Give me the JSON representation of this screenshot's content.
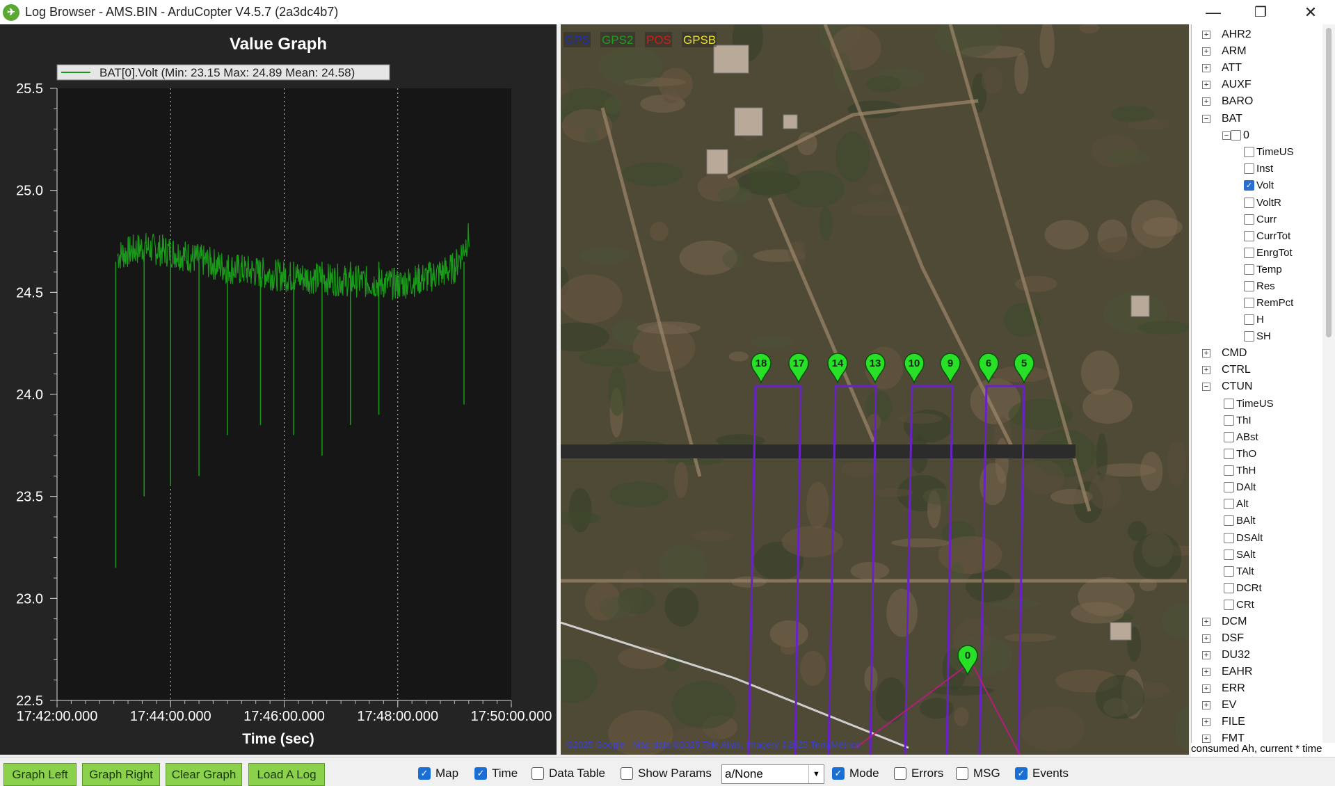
{
  "window": {
    "title": "Log Browser - AMS.BIN - ArduCopter V4.5.7 (2a3dc4b7)",
    "minimize_glyph": "—",
    "maximize_glyph": "❐",
    "close_glyph": "✕"
  },
  "graph": {
    "title": "Value Graph",
    "legend_label": "BAT[0].Volt  (Min: 23.15 Max: 24.89 Mean: 24.58)",
    "xlabel": "Time (sec)"
  },
  "chart_data": {
    "type": "line",
    "title": "Value Graph",
    "xlabel": "Time (sec)",
    "ylabel": "",
    "x_tick_labels": [
      "17:42:00.000",
      "17:44:00.000",
      "17:46:00.000",
      "17:48:00.000",
      "17:50:00.000"
    ],
    "y_tick_labels": [
      "25.5",
      "25.0",
      "24.5",
      "24.0",
      "23.5",
      "23.0",
      "22.5"
    ],
    "ylim": [
      22.5,
      25.5
    ],
    "xlim": [
      "17:42:00.000",
      "17:50:00.000"
    ],
    "grid": "vertical dotted",
    "legend_position": "top-left",
    "series": [
      {
        "name": "BAT[0].Volt",
        "color": "#1a9a1a",
        "min": 23.15,
        "max": 24.89,
        "mean": 24.58,
        "approx_points_time_value": [
          [
            "17:43:04",
            24.68
          ],
          [
            "17:43:30",
            24.72
          ],
          [
            "17:44:00",
            24.7
          ],
          [
            "17:44:30",
            24.66
          ],
          [
            "17:45:00",
            24.62
          ],
          [
            "17:45:30",
            24.6
          ],
          [
            "17:46:00",
            24.58
          ],
          [
            "17:46:30",
            24.57
          ],
          [
            "17:47:00",
            24.56
          ],
          [
            "17:47:30",
            24.55
          ],
          [
            "17:48:00",
            24.54
          ],
          [
            "17:48:30",
            24.57
          ],
          [
            "17:49:00",
            24.62
          ],
          [
            "17:49:16",
            24.78
          ]
        ],
        "dips_time_value": [
          [
            "17:43:02",
            23.15
          ],
          [
            "17:43:32",
            23.5
          ],
          [
            "17:44:00",
            23.55
          ],
          [
            "17:44:30",
            23.6
          ],
          [
            "17:45:00",
            23.8
          ],
          [
            "17:45:35",
            23.85
          ],
          [
            "17:46:10",
            23.8
          ],
          [
            "17:46:40",
            23.7
          ],
          [
            "17:47:10",
            23.85
          ],
          [
            "17:47:40",
            23.9
          ],
          [
            "17:49:10",
            23.95
          ]
        ]
      }
    ]
  },
  "map": {
    "legend": [
      {
        "label": "GPS",
        "color": "#1a2fb0"
      },
      {
        "label": "GPS2",
        "color": "#1f9d1f"
      },
      {
        "label": "POS",
        "color": "#d01c1c"
      },
      {
        "label": "GPSB",
        "color": "#e8e02a"
      }
    ],
    "markers": [
      "18",
      "17",
      "14",
      "13",
      "10",
      "9",
      "6",
      "5",
      "0"
    ],
    "attribution": "©2025 Google - Map data ©2025 Tele Atlas, Imagery ©2025 TerraMetrics",
    "track_color": "#6a22c8"
  },
  "tree": {
    "nodes": [
      {
        "label": "AHR2",
        "type": "collapsed"
      },
      {
        "label": "ARM",
        "type": "collapsed"
      },
      {
        "label": "ATT",
        "type": "collapsed"
      },
      {
        "label": "AUXF",
        "type": "collapsed"
      },
      {
        "label": "BARO",
        "type": "collapsed"
      },
      {
        "label": "BAT",
        "type": "expanded"
      },
      {
        "label": "0",
        "type": "sub-expanded"
      },
      {
        "label": "TimeUS",
        "type": "field2",
        "checked": false
      },
      {
        "label": "Inst",
        "type": "field2",
        "checked": false
      },
      {
        "label": "Volt",
        "type": "field2",
        "checked": true
      },
      {
        "label": "VoltR",
        "type": "field2",
        "checked": false
      },
      {
        "label": "Curr",
        "type": "field2",
        "checked": false
      },
      {
        "label": "CurrTot",
        "type": "field2",
        "checked": false
      },
      {
        "label": "EnrgTot",
        "type": "field2",
        "checked": false
      },
      {
        "label": "Temp",
        "type": "field2",
        "checked": false
      },
      {
        "label": "Res",
        "type": "field2",
        "checked": false
      },
      {
        "label": "RemPct",
        "type": "field2",
        "checked": false
      },
      {
        "label": "H",
        "type": "field2",
        "checked": false
      },
      {
        "label": "SH",
        "type": "field2",
        "checked": false
      },
      {
        "label": "CMD",
        "type": "collapsed"
      },
      {
        "label": "CTRL",
        "type": "collapsed"
      },
      {
        "label": "CTUN",
        "type": "expanded"
      },
      {
        "label": "TimeUS",
        "type": "field1",
        "checked": false
      },
      {
        "label": "ThI",
        "type": "field1",
        "checked": false
      },
      {
        "label": "ABst",
        "type": "field1",
        "checked": false
      },
      {
        "label": "ThO",
        "type": "field1",
        "checked": false
      },
      {
        "label": "ThH",
        "type": "field1",
        "checked": false
      },
      {
        "label": "DAlt",
        "type": "field1",
        "checked": false
      },
      {
        "label": "Alt",
        "type": "field1",
        "checked": false
      },
      {
        "label": "BAlt",
        "type": "field1",
        "checked": false
      },
      {
        "label": "DSAlt",
        "type": "field1",
        "checked": false
      },
      {
        "label": "SAlt",
        "type": "field1",
        "checked": false
      },
      {
        "label": "TAlt",
        "type": "field1",
        "checked": false
      },
      {
        "label": "DCRt",
        "type": "field1",
        "checked": false
      },
      {
        "label": "CRt",
        "type": "field1",
        "checked": false
      },
      {
        "label": "DCM",
        "type": "collapsed"
      },
      {
        "label": "DSF",
        "type": "collapsed"
      },
      {
        "label": "DU32",
        "type": "collapsed"
      },
      {
        "label": "EAHR",
        "type": "collapsed"
      },
      {
        "label": "ERR",
        "type": "collapsed"
      },
      {
        "label": "EV",
        "type": "collapsed"
      },
      {
        "label": "FILE",
        "type": "collapsed"
      },
      {
        "label": "FMT",
        "type": "collapsed"
      }
    ],
    "status_text": "consumed Ah, current * time"
  },
  "bottom": {
    "buttons": {
      "graph_left": "Graph Left",
      "graph_right": "Graph Right",
      "clear_graph": "Clear Graph",
      "load_log": "Load A Log"
    },
    "checkboxes": {
      "map": {
        "label": "Map",
        "checked": true
      },
      "time": {
        "label": "Time",
        "checked": true
      },
      "data_table": {
        "label": "Data Table",
        "checked": false
      },
      "show_params": {
        "label": "Show Params",
        "checked": false
      },
      "mode": {
        "label": "Mode",
        "checked": true
      },
      "errors": {
        "label": "Errors",
        "checked": false
      },
      "msg": {
        "label": "MSG",
        "checked": false
      },
      "events": {
        "label": "Events",
        "checked": true
      }
    },
    "combo_value": "a/None",
    "combo_arrow": "▼"
  }
}
